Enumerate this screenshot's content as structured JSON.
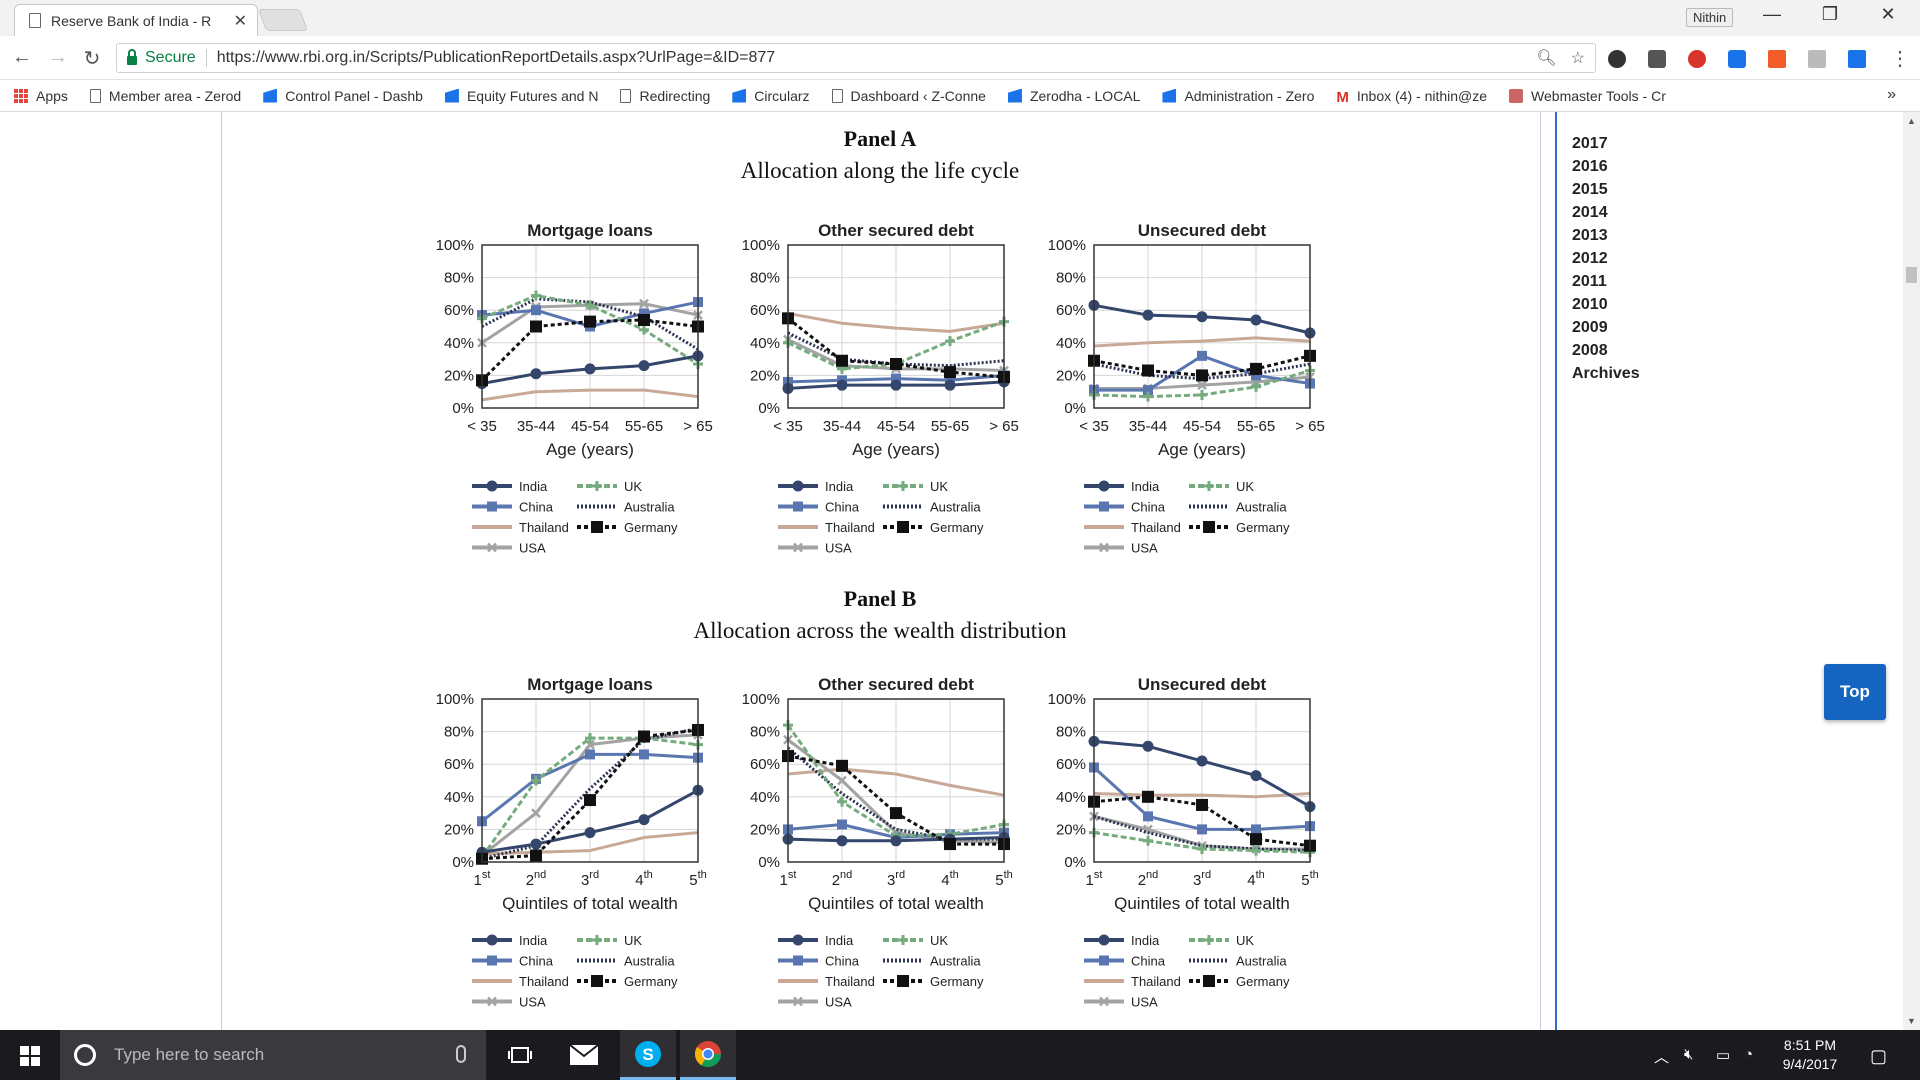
{
  "browser": {
    "tab_title": "Reserve Bank of India - R",
    "profile_name": "Nithin",
    "secure_label": "Secure",
    "url": "https://www.rbi.org.in/Scripts/PublicationReportDetails.aspx?UrlPage=&ID=877",
    "bookmarks": [
      {
        "label": "Apps",
        "icon": "apps-grid-icon"
      },
      {
        "label": "Member area - Zerod",
        "icon": "page-icon"
      },
      {
        "label": "Control Panel - Dashb",
        "icon": "bookmark-blue-icon"
      },
      {
        "label": "Equity Futures and N",
        "icon": "bookmark-blue-icon"
      },
      {
        "label": "Redirecting",
        "icon": "page-icon"
      },
      {
        "label": "Circularz",
        "icon": "bookmark-blue-icon"
      },
      {
        "label": "Dashboard ‹ Z-Conne",
        "icon": "page-icon"
      },
      {
        "label": "Zerodha - LOCAL",
        "icon": "bookmark-blue-icon"
      },
      {
        "label": "Administration - Zero",
        "icon": "bookmark-blue-icon"
      },
      {
        "label": "Inbox (4) - nithin@ze",
        "icon": "gmail-icon"
      },
      {
        "label": "Webmaster Tools - Cr",
        "icon": "webmaster-icon"
      }
    ],
    "more_bookmarks": "»"
  },
  "sidebar": {
    "years": [
      "2017",
      "2016",
      "2015",
      "2014",
      "2013",
      "2012",
      "2011",
      "2010",
      "2009",
      "2008",
      "Archives"
    ],
    "top_button": "Top"
  },
  "panels": [
    {
      "title": "Panel A",
      "subtitle": "Allocation along the life cycle"
    },
    {
      "title": "Panel B",
      "subtitle": "Allocation across the wealth distribution"
    }
  ],
  "chart_common": {
    "yticks": [
      "0%",
      "20%",
      "40%",
      "60%",
      "80%",
      "100%"
    ],
    "ylim": [
      0,
      100
    ],
    "legend": [
      "India",
      "China",
      "Thailand",
      "USA",
      "UK",
      "Australia",
      "Germany"
    ],
    "series_style": {
      "India": {
        "color": "#34466b",
        "dash": "",
        "marker": "circle",
        "width": 3
      },
      "China": {
        "color": "#5a76b0",
        "dash": "",
        "marker": "square",
        "width": 3
      },
      "Thailand": {
        "color": "#c9a898",
        "dash": "",
        "marker": "none",
        "width": 3
      },
      "USA": {
        "color": "#a3a3a3",
        "dash": "",
        "marker": "cross",
        "width": 3
      },
      "UK": {
        "color": "#75ab7d",
        "dash": "6,3",
        "marker": "plus",
        "width": 3
      },
      "Australia": {
        "color": "#2a3450",
        "dash": "2,2",
        "marker": "none",
        "width": 3
      },
      "Germany": {
        "color": "#111111",
        "dash": "4,3",
        "marker": "bigsquare",
        "width": 3
      }
    }
  },
  "chart_data": [
    {
      "type": "line",
      "panel": 0,
      "title": "Mortgage loans",
      "xlabel": "Age (years)",
      "categories": [
        "< 35",
        "35-44",
        "45-54",
        "55-65",
        "> 65"
      ],
      "ylim": [
        0,
        100
      ],
      "series": [
        {
          "name": "India",
          "values": [
            15,
            21,
            24,
            26,
            32
          ]
        },
        {
          "name": "China",
          "values": [
            57,
            60,
            50,
            58,
            65
          ]
        },
        {
          "name": "Thailand",
          "values": [
            5,
            10,
            11,
            11,
            7
          ]
        },
        {
          "name": "USA",
          "values": [
            40,
            62,
            63,
            64,
            57
          ]
        },
        {
          "name": "UK",
          "values": [
            55,
            69,
            63,
            48,
            27
          ]
        },
        {
          "name": "Australia",
          "values": [
            50,
            67,
            65,
            56,
            36
          ]
        },
        {
          "name": "Germany",
          "values": [
            17,
            50,
            53,
            54,
            50
          ]
        }
      ]
    },
    {
      "type": "line",
      "panel": 0,
      "title": "Other secured debt",
      "xlabel": "Age (years)",
      "categories": [
        "< 35",
        "35-44",
        "45-54",
        "55-65",
        "> 65"
      ],
      "ylim": [
        0,
        100
      ],
      "series": [
        {
          "name": "India",
          "values": [
            12,
            14,
            14,
            14,
            16
          ]
        },
        {
          "name": "China",
          "values": [
            16,
            17,
            18,
            17,
            20
          ]
        },
        {
          "name": "Thailand",
          "values": [
            58,
            52,
            49,
            47,
            52
          ]
        },
        {
          "name": "USA",
          "values": [
            42,
            26,
            24,
            24,
            23
          ]
        },
        {
          "name": "UK",
          "values": [
            40,
            24,
            27,
            41,
            53
          ]
        },
        {
          "name": "Australia",
          "values": [
            46,
            30,
            27,
            26,
            29
          ]
        },
        {
          "name": "Germany",
          "values": [
            55,
            29,
            27,
            22,
            19
          ]
        }
      ]
    },
    {
      "type": "line",
      "panel": 0,
      "title": "Unsecured debt",
      "xlabel": "Age (years)",
      "categories": [
        "< 35",
        "35-44",
        "45-54",
        "55-65",
        "> 65"
      ],
      "ylim": [
        0,
        100
      ],
      "series": [
        {
          "name": "India",
          "values": [
            63,
            57,
            56,
            54,
            46
          ]
        },
        {
          "name": "China",
          "values": [
            11,
            11,
            32,
            20,
            15
          ]
        },
        {
          "name": "Thailand",
          "values": [
            38,
            40,
            41,
            43,
            41
          ]
        },
        {
          "name": "USA",
          "values": [
            12,
            12,
            14,
            16,
            19
          ]
        },
        {
          "name": "UK",
          "values": [
            8,
            7,
            8,
            13,
            23
          ]
        },
        {
          "name": "Australia",
          "values": [
            27,
            20,
            18,
            21,
            27
          ]
        },
        {
          "name": "Germany",
          "values": [
            29,
            23,
            20,
            24,
            32
          ]
        }
      ]
    },
    {
      "type": "line",
      "panel": 1,
      "title": "Mortgage loans",
      "xlabel": "Quintiles of total wealth",
      "categories": [
        "1st",
        "2nd",
        "3rd",
        "4th",
        "5th"
      ],
      "ylim": [
        0,
        100
      ],
      "series": [
        {
          "name": "India",
          "values": [
            6,
            11,
            18,
            26,
            44
          ]
        },
        {
          "name": "China",
          "values": [
            25,
            51,
            66,
            66,
            64
          ]
        },
        {
          "name": "Thailand",
          "values": [
            5,
            6,
            7,
            15,
            18
          ]
        },
        {
          "name": "USA",
          "values": [
            4,
            30,
            72,
            76,
            78
          ]
        },
        {
          "name": "UK",
          "values": [
            3,
            50,
            76,
            76,
            72
          ]
        },
        {
          "name": "Australia",
          "values": [
            2,
            10,
            45,
            75,
            82
          ]
        },
        {
          "name": "Germany",
          "values": [
            2,
            4,
            38,
            77,
            81
          ]
        }
      ]
    },
    {
      "type": "line",
      "panel": 1,
      "title": "Other secured debt",
      "xlabel": "Quintiles of total wealth",
      "categories": [
        "1st",
        "2nd",
        "3rd",
        "4th",
        "5th"
      ],
      "ylim": [
        0,
        100
      ],
      "series": [
        {
          "name": "India",
          "values": [
            14,
            13,
            13,
            14,
            15
          ]
        },
        {
          "name": "China",
          "values": [
            20,
            23,
            15,
            17,
            18
          ]
        },
        {
          "name": "Thailand",
          "values": [
            54,
            57,
            54,
            47,
            41
          ]
        },
        {
          "name": "USA",
          "values": [
            75,
            50,
            18,
            13,
            12
          ]
        },
        {
          "name": "UK",
          "values": [
            84,
            37,
            16,
            17,
            23
          ]
        },
        {
          "name": "Australia",
          "values": [
            70,
            42,
            20,
            14,
            14
          ]
        },
        {
          "name": "Germany",
          "values": [
            65,
            59,
            30,
            11,
            11
          ]
        }
      ]
    },
    {
      "type": "line",
      "panel": 1,
      "title": "Unsecured debt",
      "xlabel": "Quintiles of total wealth",
      "categories": [
        "1st",
        "2nd",
        "3rd",
        "4th",
        "5th"
      ],
      "ylim": [
        0,
        100
      ],
      "series": [
        {
          "name": "India",
          "values": [
            74,
            71,
            62,
            53,
            34
          ]
        },
        {
          "name": "China",
          "values": [
            58,
            28,
            20,
            20,
            22
          ]
        },
        {
          "name": "Thailand",
          "values": [
            42,
            41,
            41,
            40,
            42
          ]
        },
        {
          "name": "USA",
          "values": [
            28,
            20,
            10,
            8,
            8
          ]
        },
        {
          "name": "UK",
          "values": [
            18,
            13,
            8,
            7,
            6
          ]
        },
        {
          "name": "Australia",
          "values": [
            28,
            18,
            10,
            8,
            7
          ]
        },
        {
          "name": "Germany",
          "values": [
            37,
            40,
            35,
            14,
            10
          ]
        }
      ]
    }
  ],
  "taskbar": {
    "search_placeholder": "Type here to search",
    "time": "8:51 PM",
    "date": "9/4/2017"
  }
}
